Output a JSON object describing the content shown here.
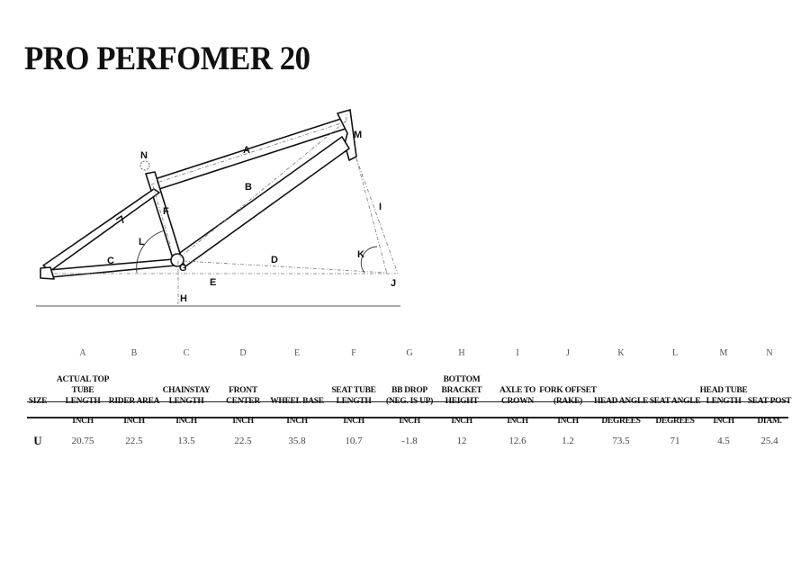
{
  "title": "PRO PERFOMER 20",
  "diagram_labels": {
    "A": "A",
    "B": "B",
    "C": "C",
    "D": "D",
    "E": "E",
    "F": "F",
    "G": "G",
    "H": "H",
    "I": "I",
    "J": "J",
    "K": "K",
    "L": "L",
    "M": "M",
    "N": "N"
  },
  "table": {
    "columns": [
      {
        "letter": "",
        "header": "SIZE",
        "unit": "",
        "value": "U"
      },
      {
        "letter": "A",
        "header": "ACTUAL TOP TUBE LENGTH",
        "unit": "INCH",
        "value": "20.75"
      },
      {
        "letter": "B",
        "header": "RIDER AREA",
        "unit": "INCH",
        "value": "22.5"
      },
      {
        "letter": "C",
        "header": "CHAINSTAY LENGTH",
        "unit": "INCH",
        "value": "13.5"
      },
      {
        "letter": "D",
        "header": "FRONT CENTER",
        "unit": "INCH",
        "value": "22.5"
      },
      {
        "letter": "E",
        "header": "WHEEL BASE",
        "unit": "INCH",
        "value": "35.8"
      },
      {
        "letter": "F",
        "header": "SEAT TUBE LENGTH",
        "unit": "INCH",
        "value": "10.7"
      },
      {
        "letter": "G",
        "header": "BB DROP (NEG. IS UP)",
        "unit": "INCH",
        "value": "-1.8"
      },
      {
        "letter": "H",
        "header": "BOTTOM BRACKET HEIGHT",
        "unit": "INCH",
        "value": "12"
      },
      {
        "letter": "I",
        "header": "AXLE TO CROWN",
        "unit": "INCH",
        "value": "12.6"
      },
      {
        "letter": "J",
        "header": "FORK OFFSET (RAKE)",
        "unit": "INCH",
        "value": "1.2"
      },
      {
        "letter": "K",
        "header": "HEAD ANGLE",
        "unit": "DEGREES",
        "value": "73.5"
      },
      {
        "letter": "L",
        "header": "SEAT ANGLE",
        "unit": "DEGREES",
        "value": "71"
      },
      {
        "letter": "M",
        "header": "HEAD TUBE LENGTH",
        "unit": "INCH",
        "value": "4.5"
      },
      {
        "letter": "N",
        "header": "SEAT POST",
        "unit": "DIAM.",
        "value": "25.4"
      }
    ]
  }
}
